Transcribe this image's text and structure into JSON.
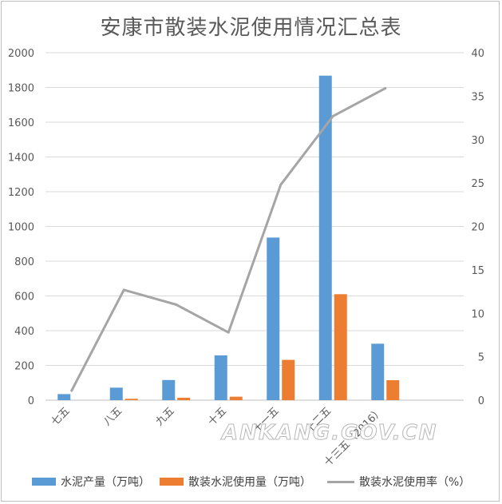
{
  "chart_data": {
    "type": "bar",
    "title": "安康市散装水泥使用情况汇总表",
    "categories": [
      "七五",
      "八五",
      "九五",
      "十五",
      "十一五",
      "十二五",
      "十三五（2016）"
    ],
    "series": [
      {
        "name": "水泥产量（万吨）",
        "type": "bar",
        "axis": "left",
        "color": "#5B9BD5",
        "values": [
          35,
          72,
          116,
          258,
          936,
          1868,
          325
        ]
      },
      {
        "name": "散装水泥使用量（万吨）",
        "type": "bar",
        "axis": "left",
        "color": "#ED7D31",
        "values": [
          0,
          8,
          14,
          20,
          232,
          610,
          115
        ]
      },
      {
        "name": "散装水泥使用率（%）",
        "type": "line",
        "axis": "right",
        "color": "#A5A5A5",
        "values": [
          1.1,
          12.7,
          11.0,
          7.8,
          24.8,
          32.7,
          35.9
        ]
      }
    ],
    "ylim_left": [
      0,
      2000
    ],
    "ylim_right": [
      0,
      40
    ],
    "yticks_left": [
      "0",
      "200",
      "400",
      "600",
      "800",
      "1000",
      "1200",
      "1400",
      "1600",
      "1800",
      "2000"
    ],
    "yticks_right": [
      "0",
      "5",
      "10",
      "15",
      "20",
      "25",
      "30",
      "35",
      "40"
    ],
    "grid": true,
    "legend_position": "bottom"
  },
  "watermark": "ANKANG.GOV.CN"
}
